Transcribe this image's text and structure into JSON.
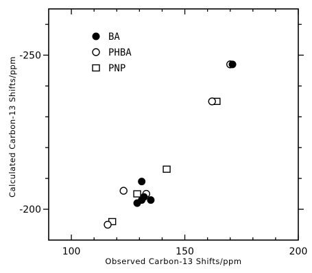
{
  "chart_data": {
    "type": "scatter",
    "xlabel": "Observed Carbon-13 Shifts/ppm",
    "ylabel": "Calculated Carbon-13 Shifts/ppm",
    "xlim": [
      90,
      200
    ],
    "ylim": [
      -190,
      -265
    ],
    "y_axis_reversed": true,
    "x_ticks": [
      100,
      150,
      200
    ],
    "x_minor_ticks": [
      110,
      120,
      130,
      140,
      160,
      170,
      180,
      190
    ],
    "y_ticks": [
      -250,
      -200
    ],
    "y_tick_labels": [
      "-250",
      "-200"
    ],
    "y_minor_ticks": [
      -260,
      -240,
      -230,
      -220,
      -210
    ],
    "grid": false,
    "legend_position": "top-left",
    "series": [
      {
        "name": "BA",
        "marker": "filled-circle",
        "points": [
          {
            "x": 171,
            "y": -247
          },
          {
            "x": 131,
            "y": -209
          },
          {
            "x": 132,
            "y": -204
          },
          {
            "x": 131,
            "y": -203
          },
          {
            "x": 129,
            "y": -202
          },
          {
            "x": 135,
            "y": -203
          }
        ]
      },
      {
        "name": "PHBA",
        "marker": "open-circle",
        "points": [
          {
            "x": 170,
            "y": -247
          },
          {
            "x": 162,
            "y": -235
          },
          {
            "x": 123,
            "y": -206
          },
          {
            "x": 133,
            "y": -205
          },
          {
            "x": 116,
            "y": -195
          }
        ]
      },
      {
        "name": "PNP",
        "marker": "open-square",
        "points": [
          {
            "x": 164,
            "y": -235
          },
          {
            "x": 142,
            "y": -213
          },
          {
            "x": 129,
            "y": -205
          },
          {
            "x": 118,
            "y": -196
          }
        ]
      }
    ]
  }
}
